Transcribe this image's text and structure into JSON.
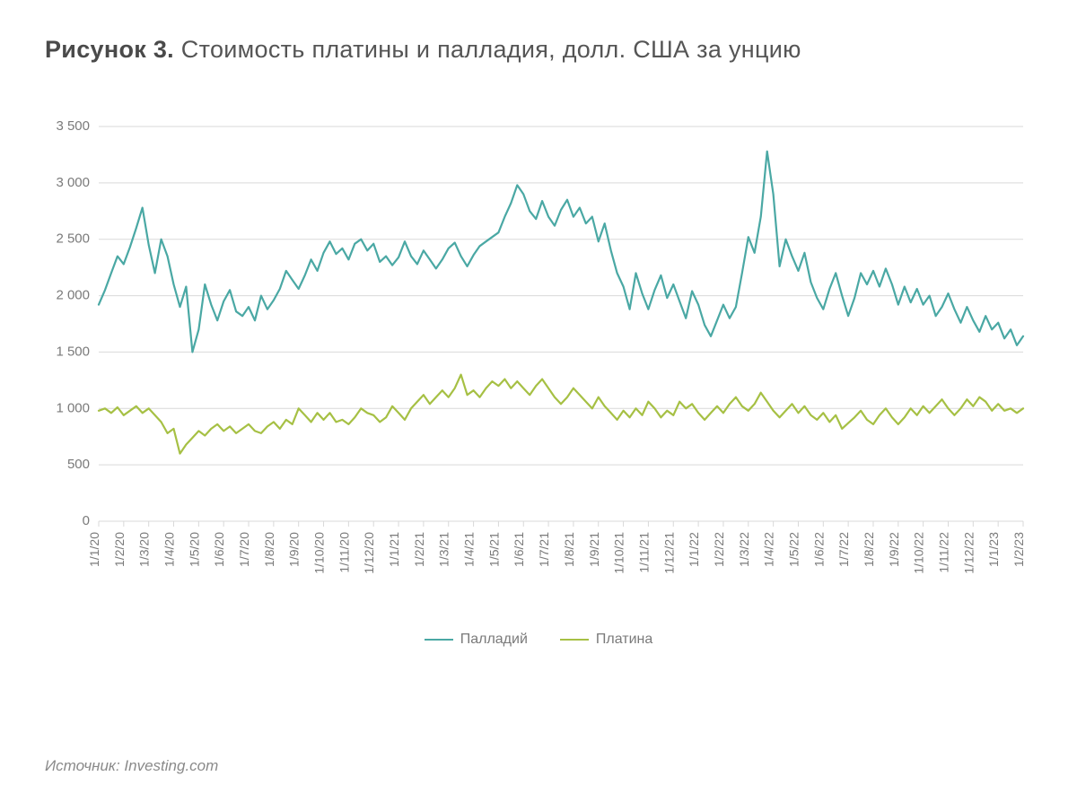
{
  "title_prefix": "Рисунок 3.",
  "title_rest": " Стоимость платины и палладия, долл. США за унцию",
  "source_label": "Источник: Investing.com",
  "chart": {
    "type": "line",
    "background_color": "#ffffff",
    "grid_color": "#d9d9d9",
    "axis_color": "#cfcfcf",
    "tick_label_color": "#7a7a7a",
    "title_fontsize": 27,
    "tick_fontsize": 15,
    "ylim": [
      0,
      3500
    ],
    "ytick_step": 500,
    "y_ticks": [
      0,
      500,
      1000,
      1500,
      2000,
      2500,
      3000,
      3500
    ],
    "y_tick_labels": [
      "0",
      "500",
      "1 000",
      "1 500",
      "2 000",
      "2 500",
      "3 000",
      "3 500"
    ],
    "x_categories": [
      "1/1/20",
      "1/2/20",
      "1/3/20",
      "1/4/20",
      "1/5/20",
      "1/6/20",
      "1/7/20",
      "1/8/20",
      "1/9/20",
      "1/10/20",
      "1/11/20",
      "1/12/20",
      "1/1/21",
      "1/2/21",
      "1/3/21",
      "1/4/21",
      "1/5/21",
      "1/6/21",
      "1/7/21",
      "1/8/21",
      "1/9/21",
      "1/10/21",
      "1/11/21",
      "1/12/21",
      "1/1/22",
      "1/2/22",
      "1/3/22",
      "1/4/22",
      "1/5/22",
      "1/6/22",
      "1/7/22",
      "1/8/22",
      "1/9/22",
      "1/10/22",
      "1/11/22",
      "1/12/22",
      "1/1/23",
      "1/2/23"
    ],
    "legend": {
      "position": "bottom-center",
      "items": [
        {
          "label": "Палладий",
          "color": "#4aa8a4"
        },
        {
          "label": "Платина",
          "color": "#a6c044"
        }
      ]
    },
    "series": [
      {
        "name": "Палладий",
        "color": "#4aa8a4",
        "line_width": 2.2,
        "data": [
          1920,
          2050,
          2200,
          2350,
          2280,
          2430,
          2600,
          2780,
          2450,
          2200,
          2500,
          2350,
          2100,
          1900,
          2080,
          1500,
          1700,
          2100,
          1920,
          1780,
          1950,
          2050,
          1860,
          1820,
          1900,
          1780,
          2000,
          1880,
          1960,
          2060,
          2220,
          2140,
          2060,
          2180,
          2320,
          2220,
          2380,
          2480,
          2370,
          2420,
          2320,
          2460,
          2500,
          2400,
          2460,
          2300,
          2350,
          2270,
          2340,
          2480,
          2350,
          2280,
          2400,
          2320,
          2240,
          2320,
          2420,
          2470,
          2350,
          2260,
          2360,
          2440,
          2480,
          2520,
          2560,
          2700,
          2820,
          2980,
          2900,
          2750,
          2680,
          2840,
          2700,
          2620,
          2760,
          2850,
          2700,
          2780,
          2640,
          2700,
          2480,
          2640,
          2400,
          2200,
          2080,
          1880,
          2200,
          2020,
          1880,
          2050,
          2180,
          1980,
          2100,
          1950,
          1800,
          2040,
          1920,
          1740,
          1640,
          1780,
          1920,
          1800,
          1900,
          2200,
          2520,
          2380,
          2700,
          3280,
          2900,
          2260,
          2500,
          2350,
          2220,
          2380,
          2120,
          1980,
          1880,
          2060,
          2200,
          2000,
          1820,
          1980,
          2200,
          2100,
          2220,
          2080,
          2240,
          2100,
          1920,
          2080,
          1940,
          2060,
          1920,
          2000,
          1820,
          1900,
          2020,
          1880,
          1760,
          1900,
          1780,
          1680,
          1820,
          1700,
          1760,
          1620,
          1700,
          1560,
          1640
        ]
      },
      {
        "name": "Платина",
        "color": "#a6c044",
        "line_width": 2.2,
        "data": [
          980,
          1000,
          960,
          1010,
          940,
          980,
          1020,
          960,
          1000,
          940,
          880,
          780,
          820,
          600,
          680,
          740,
          800,
          760,
          820,
          860,
          800,
          840,
          780,
          820,
          860,
          800,
          780,
          840,
          880,
          820,
          900,
          860,
          1000,
          940,
          880,
          960,
          900,
          960,
          880,
          900,
          860,
          920,
          1000,
          960,
          940,
          880,
          920,
          1020,
          960,
          900,
          1000,
          1060,
          1120,
          1040,
          1100,
          1160,
          1100,
          1180,
          1300,
          1120,
          1160,
          1100,
          1180,
          1240,
          1200,
          1260,
          1180,
          1240,
          1180,
          1120,
          1200,
          1260,
          1180,
          1100,
          1040,
          1100,
          1180,
          1120,
          1060,
          1000,
          1100,
          1020,
          960,
          900,
          980,
          920,
          1000,
          940,
          1060,
          1000,
          920,
          980,
          940,
          1060,
          1000,
          1040,
          960,
          900,
          960,
          1020,
          960,
          1040,
          1100,
          1020,
          980,
          1040,
          1140,
          1060,
          980,
          920,
          980,
          1040,
          960,
          1020,
          940,
          900,
          960,
          880,
          940,
          820,
          870,
          920,
          980,
          900,
          860,
          940,
          1000,
          920,
          860,
          920,
          1000,
          940,
          1020,
          960,
          1020,
          1080,
          1000,
          940,
          1000,
          1080,
          1020,
          1100,
          1060,
          980,
          1040,
          980,
          1000,
          960,
          1000
        ]
      }
    ]
  }
}
